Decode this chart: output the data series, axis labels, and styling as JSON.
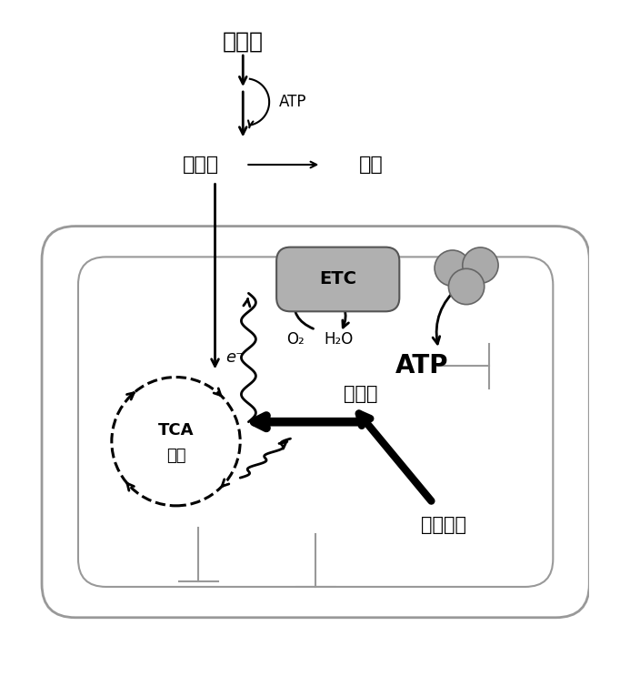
{
  "bg_color": "#ffffff",
  "text_color": "#000000",
  "mito_edge": "#999999",
  "etc_fill": "#b0b0b0",
  "circles_fill": "#aaaaaa",
  "labels": {
    "galactose": "半乳糖",
    "atp_top": "ATP",
    "pyruvate": "丙酮酸",
    "lactate": "乳酸",
    "ETC": "ETC",
    "O2": "O₂",
    "H2O": "H₂O",
    "e_minus": "e⁻",
    "TCA": "TCA",
    "cycle": "循环",
    "ATP_mito": "ATP",
    "glutamate": "谷氨酸",
    "glutamine": "谷氨酰胺"
  },
  "figsize": [
    6.82,
    7.43
  ],
  "dpi": 100
}
